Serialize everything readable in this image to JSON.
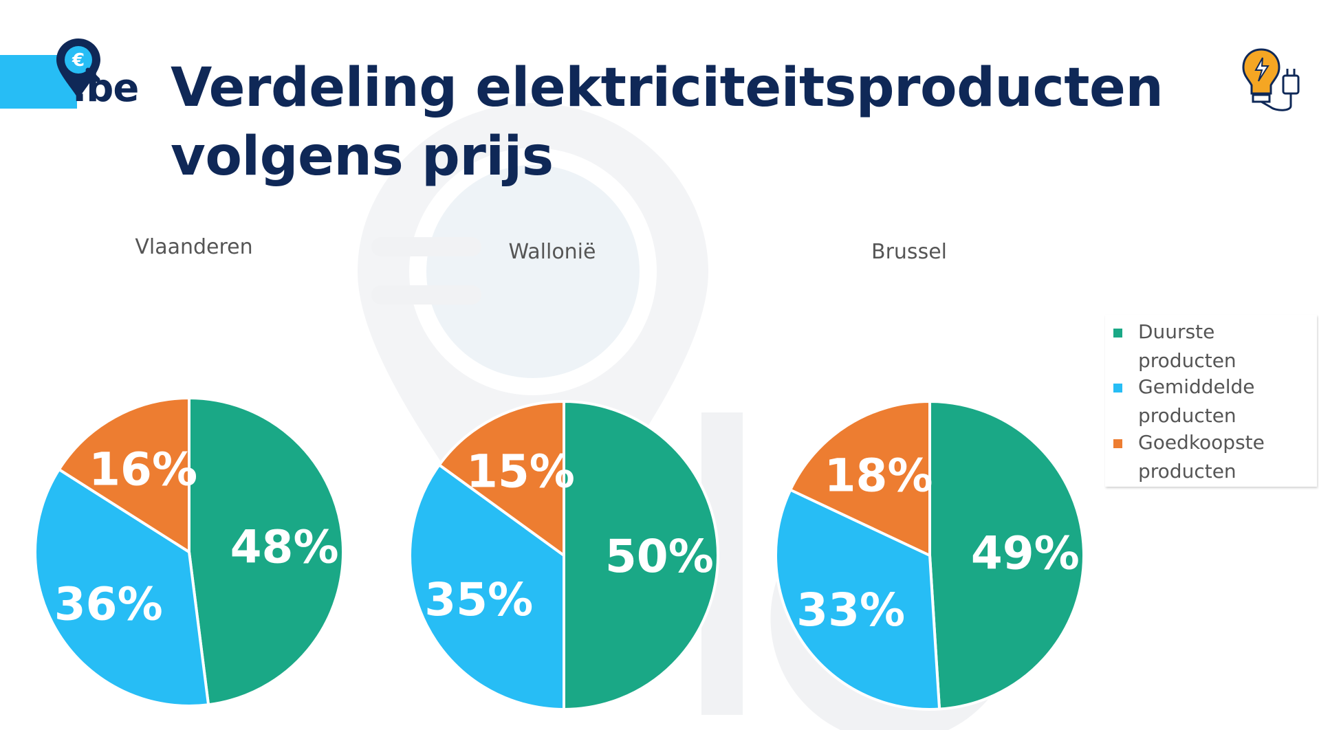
{
  "header": {
    "title_line1": "Verdeling elektriciteitsproducten",
    "title_line2": "volgens prijs",
    "logo_text": ".be",
    "logo_icon": "euro-magnifier-pin-icon",
    "decor_icon": "lightbulb-plug-icon"
  },
  "colors": {
    "brand_dark": "#0f2857",
    "brand_blue": "#27bdf5",
    "duur": "#1aa886",
    "gemiddeld": "#27bdf5",
    "goedkoop": "#ed7d31"
  },
  "chart_data": [
    {
      "type": "pie",
      "title": "Vlaanderen",
      "categories": [
        "Duurste producten",
        "Gemiddelde producten",
        "Goedkoopste producten"
      ],
      "values": [
        48,
        36,
        16
      ],
      "labels": [
        "48%",
        "36%",
        "16%"
      ]
    },
    {
      "type": "pie",
      "title": "Wallonië",
      "categories": [
        "Duurste producten",
        "Gemiddelde producten",
        "Goedkoopste producten"
      ],
      "values": [
        50,
        35,
        15
      ],
      "labels": [
        "50%",
        "35%",
        "15%"
      ]
    },
    {
      "type": "pie",
      "title": "Brussel",
      "categories": [
        "Duurste producten",
        "Gemiddelde producten",
        "Goedkoopste producten"
      ],
      "values": [
        49,
        33,
        18
      ],
      "labels": [
        "49%",
        "33%",
        "18%"
      ]
    }
  ],
  "legend": {
    "placement": "right",
    "items": [
      {
        "label": "Duurste producten",
        "color": "#1aa886"
      },
      {
        "label": "Gemiddelde producten",
        "color": "#27bdf5"
      },
      {
        "label": "Goedkoopste producten",
        "color": "#ed7d31"
      }
    ]
  }
}
